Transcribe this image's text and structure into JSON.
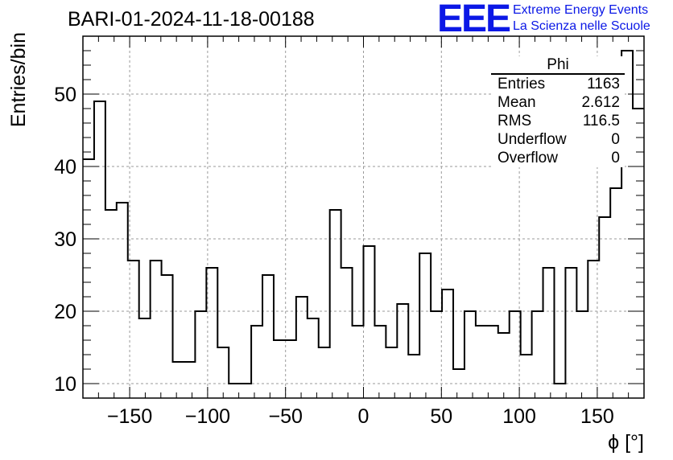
{
  "header": {
    "run_title": "BARI-01-2024-11-18-00188",
    "logo_text": "EEE",
    "logo_line1": "Extreme Energy Events",
    "logo_line2": "La Scienza nelle Scuole",
    "logo_color": "#0b18e6"
  },
  "stats_box": {
    "title": "Phi",
    "rows": [
      {
        "label": "Entries",
        "value": "1163"
      },
      {
        "label": "Mean",
        "value": "2.612"
      },
      {
        "label": "RMS",
        "value": "116.5"
      },
      {
        "label": "Underflow",
        "value": "0"
      },
      {
        "label": "Overflow",
        "value": "0"
      }
    ]
  },
  "chart_data": {
    "type": "histogram",
    "title": "BARI-01-2024-11-18-00188",
    "xlabel": "ϕ [°]",
    "ylabel": "Entries/bin",
    "xlim": [
      -180,
      180
    ],
    "ylim": [
      8,
      58
    ],
    "bin_width": 7.2,
    "bin_start": -180,
    "xticks": [
      -150,
      -100,
      -50,
      0,
      50,
      100,
      150
    ],
    "yticks": [
      10,
      20,
      30,
      40,
      50
    ],
    "grid": true,
    "values": [
      41,
      49,
      34,
      35,
      27,
      19,
      27,
      25,
      13,
      13,
      20,
      26,
      15,
      10,
      10,
      18,
      25,
      16,
      16,
      22,
      19,
      15,
      34,
      26,
      18,
      29,
      18,
      15,
      21,
      14,
      28,
      20,
      23,
      12,
      20,
      18,
      18,
      17,
      20,
      14,
      20,
      26,
      10,
      26,
      20,
      27,
      33,
      37,
      56,
      48
    ]
  }
}
